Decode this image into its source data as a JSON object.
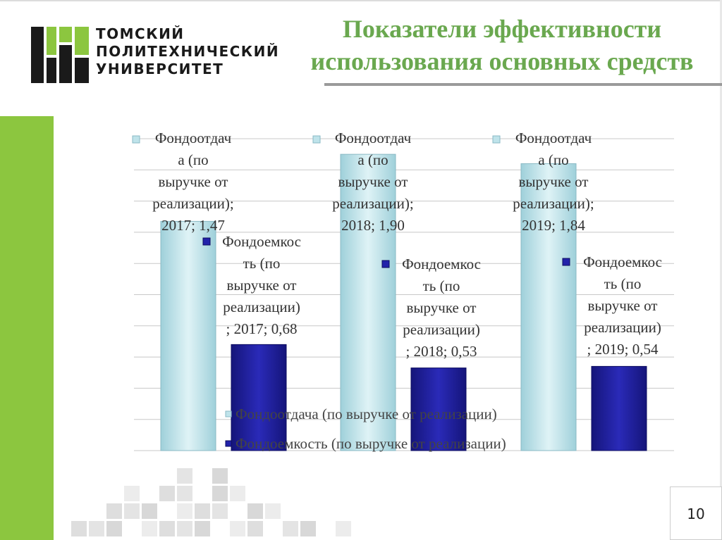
{
  "header": {
    "logo_lines": [
      "ТОМСКИЙ",
      "ПОЛИТЕХНИЧЕСКИЙ",
      "УНИВЕРСИТЕТ"
    ],
    "title_lines": [
      "Показатели эффективности",
      "использования основных средств"
    ]
  },
  "page_number": "10",
  "colors": {
    "accent_green": "#8cc63f",
    "title_green": "#6aa84f",
    "series_light": "#bfe3ea",
    "series_dark": "#2222aa"
  },
  "chart_data": {
    "type": "bar",
    "categories": [
      "2017",
      "2018",
      "2019"
    ],
    "series": [
      {
        "name": "Фондоотдача (по выручке от реализации)",
        "values": [
          1.47,
          1.9,
          1.84
        ]
      },
      {
        "name": "Фондоемкость (по выручке от реализации)",
        "values": [
          0.68,
          0.53,
          0.54
        ]
      }
    ],
    "data_labels": [
      [
        "Фондоотдач",
        "а (по",
        "выручке от",
        "реализации);",
        "2017; 1,47"
      ],
      [
        "Фондоотдач",
        "а (по",
        "выручке от",
        "реализации);",
        "2018; 1,90"
      ],
      [
        "Фондоотдач",
        "а (по",
        "выручке от",
        "реализации);",
        "2019; 1,84"
      ],
      [
        "Фондоемкос",
        "ть (по",
        "выручке от",
        "реализации)",
        "; 2017; 0,68"
      ],
      [
        "Фондоемкос",
        "ть (по",
        "выручке от",
        "реализации)",
        "; 2018; 0,53"
      ],
      [
        "Фондоемкос",
        "ть (по",
        "выручке от",
        "реализации)",
        "; 2019; 0,54"
      ]
    ],
    "ylim": [
      0,
      2.0
    ],
    "grid": true,
    "legend_position": "bottom-center-inside"
  }
}
